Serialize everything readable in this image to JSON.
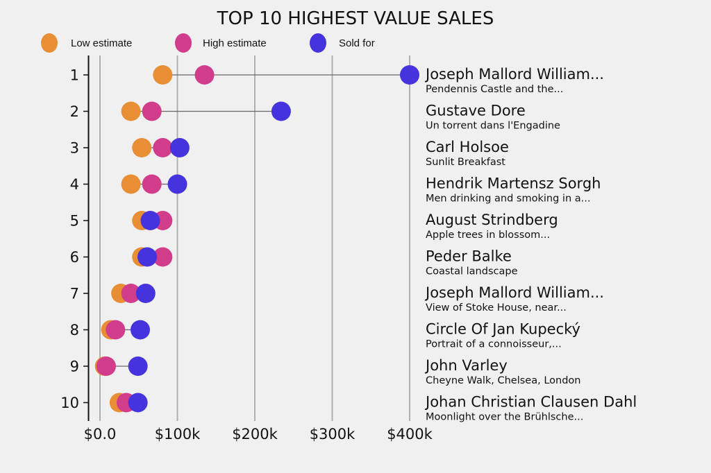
{
  "chart_data": {
    "type": "dot-range",
    "title": "TOP 10 HIGHEST VALUE SALES",
    "xlabel": "",
    "ylabel": "",
    "xlim": [
      -15000,
      415000
    ],
    "x_ticks": [
      0,
      100000,
      200000,
      300000,
      400000
    ],
    "x_tick_labels": [
      "$0.0",
      "$100k",
      "$200k",
      "$300k",
      "$400k"
    ],
    "grid": "vertical",
    "legend_position": "top-left",
    "series": [
      {
        "name": "Low estimate",
        "color": "#e88e34",
        "values": [
          81000,
          40000,
          54000,
          40000,
          54000,
          54000,
          27000,
          14000,
          6000,
          25000
        ]
      },
      {
        "name": "High estimate",
        "color": "#d13d8b",
        "values": [
          135000,
          67000,
          81000,
          67000,
          81000,
          81000,
          40000,
          20000,
          8000,
          34000
        ]
      },
      {
        "name": "Sold for",
        "color": "#4533dd",
        "values": [
          400000,
          234000,
          103000,
          100000,
          65000,
          61000,
          59000,
          52000,
          49000,
          49000
        ]
      }
    ],
    "rows": [
      {
        "rank": "1",
        "artist": "Joseph Mallord William...",
        "work": "Pendennis Castle and the..."
      },
      {
        "rank": "2",
        "artist": "Gustave Dore",
        "work": "Un torrent dans l'Engadine"
      },
      {
        "rank": "3",
        "artist": "Carl Holsoe",
        "work": "Sunlit Breakfast"
      },
      {
        "rank": "4",
        "artist": "Hendrik Martensz Sorgh",
        "work": "Men drinking and smoking in a..."
      },
      {
        "rank": "5",
        "artist": "August Strindberg",
        "work": "Apple trees in blossom..."
      },
      {
        "rank": "6",
        "artist": "Peder Balke",
        "work": "Coastal landscape"
      },
      {
        "rank": "7",
        "artist": "Joseph Mallord William...",
        "work": "View of Stoke House, near..."
      },
      {
        "rank": "8",
        "artist": "Circle Of Jan Kupecký",
        "work": "Portrait of a connoisseur,..."
      },
      {
        "rank": "9",
        "artist": "John Varley",
        "work": "Cheyne Walk, Chelsea, London"
      },
      {
        "rank": "10",
        "artist": "Johan Christian Clausen Dahl",
        "work": "Moonlight over the Brühlsche..."
      }
    ],
    "colors": {
      "background": "#f0f0f0",
      "grid": "#b0b0b0",
      "connector": "#666666",
      "axis": "#111111"
    }
  }
}
